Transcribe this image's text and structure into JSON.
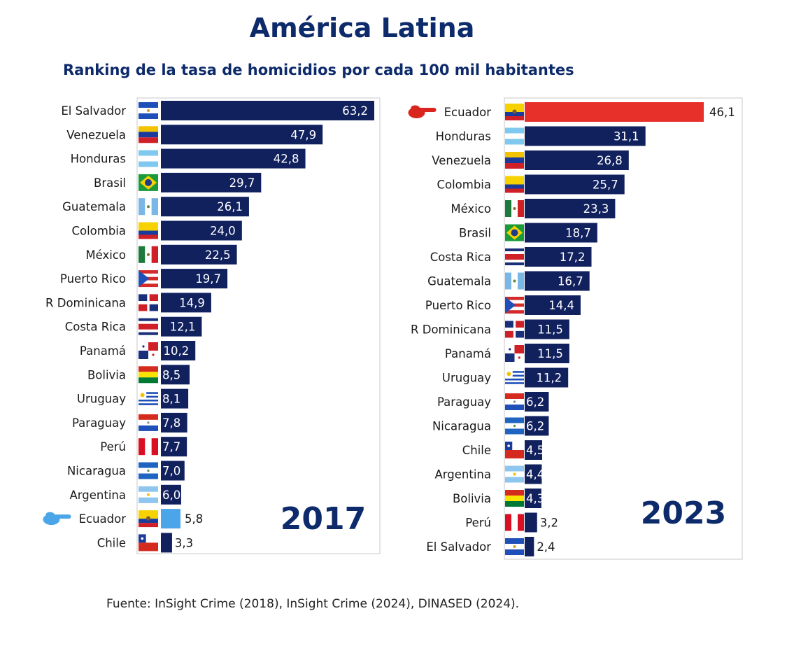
{
  "title": "América Latina",
  "subtitle": "Ranking de la tasa de homicidios por cada 100 mil habitantes",
  "source": "Fuente: InSight Crime (2018), InSight Crime (2024), DINASED (2024).",
  "colors": {
    "bar": "#11215e",
    "ecuador_2017": "#4aa6e8",
    "ecuador_2023": "#e8302a",
    "title": "#0d2a6b",
    "pointer_2017": "#4aa6e8",
    "pointer_2023": "#d9251d"
  },
  "chart_data": [
    {
      "type": "bar",
      "orientation": "horizontal",
      "year_label": "2017",
      "highlight": "Ecuador",
      "xlim": [
        0,
        63.2
      ],
      "categories": [
        "El Salvador",
        "Venezuela",
        "Honduras",
        "Brasil",
        "Guatemala",
        "Colombia",
        "México",
        "Puerto Rico",
        "R Dominicana",
        "Costa Rica",
        "Panamá",
        "Bolivia",
        "Uruguay",
        "Paraguay",
        "Perú",
        "Nicaragua",
        "Argentina",
        "Ecuador",
        "Chile"
      ],
      "values": [
        63.2,
        47.9,
        42.8,
        29.7,
        26.1,
        24.0,
        22.5,
        19.7,
        14.9,
        12.1,
        10.2,
        8.5,
        8.1,
        7.8,
        7.7,
        7.0,
        6.0,
        5.8,
        3.3
      ],
      "value_labels": [
        "63,2",
        "47,9",
        "42,8",
        "29,7",
        "26,1",
        "24,0",
        "22,5",
        "19,7",
        "14,9",
        "12,1",
        "10,2",
        "8,5",
        "8,1",
        "7,8",
        "7,7",
        "7,0",
        "6,0",
        "5,8",
        "3,3"
      ]
    },
    {
      "type": "bar",
      "orientation": "horizontal",
      "year_label": "2023",
      "highlight": "Ecuador",
      "xlim": [
        0,
        46.1
      ],
      "categories": [
        "Ecuador",
        "Honduras",
        "Venezuela",
        "Colombia",
        "México",
        "Brasil",
        "Costa Rica",
        "Guatemala",
        "Puerto Rico",
        "R Dominicana",
        "Panamá",
        "Uruguay",
        "Paraguay",
        "Nicaragua",
        "Chile",
        "Argentina",
        "Bolivia",
        "Perú",
        "El Salvador"
      ],
      "values": [
        46.1,
        31.1,
        26.8,
        25.7,
        23.3,
        18.7,
        17.2,
        16.7,
        14.4,
        11.5,
        11.5,
        11.2,
        6.2,
        6.2,
        4.5,
        4.4,
        4.3,
        3.2,
        2.4
      ],
      "value_labels": [
        "46,1",
        "31,1",
        "26,8",
        "25,7",
        "23,3",
        "18,7",
        "17,2",
        "16,7",
        "14,4",
        "11,5",
        "11,5",
        "11,2",
        "6,2",
        "6,2",
        "4,5",
        "4,4",
        "4,3",
        "3,2",
        "2,4"
      ]
    }
  ]
}
